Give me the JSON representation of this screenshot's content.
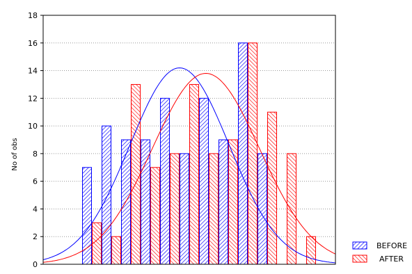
{
  "chart_data": {
    "type": "bar",
    "ylabel": "No of obs",
    "xlabel": "",
    "ylim": [
      0,
      18
    ],
    "yticks": [
      0,
      2,
      4,
      6,
      8,
      10,
      12,
      14,
      16,
      18
    ],
    "bins": 15,
    "grid": "horizontal-dotted",
    "legend_position": "bottom-right",
    "series": [
      {
        "name": "BEFORE",
        "color": "#0000ff",
        "pattern": "hatched",
        "values": [
          0,
          0,
          7,
          10,
          9,
          9,
          12,
          8,
          12,
          9,
          16,
          8,
          0,
          0,
          0
        ],
        "normal_curve": {
          "mean": 7.0,
          "sd": 2.55,
          "peak": 14.2
        }
      },
      {
        "name": "AFTER",
        "color": "#ff0000",
        "pattern": "hatched",
        "values": [
          0,
          0,
          3,
          2,
          13,
          7,
          8,
          13,
          8,
          9,
          16,
          11,
          8,
          2,
          0
        ],
        "normal_curve": {
          "mean": 8.35,
          "sd": 2.75,
          "peak": 13.8
        }
      }
    ]
  }
}
